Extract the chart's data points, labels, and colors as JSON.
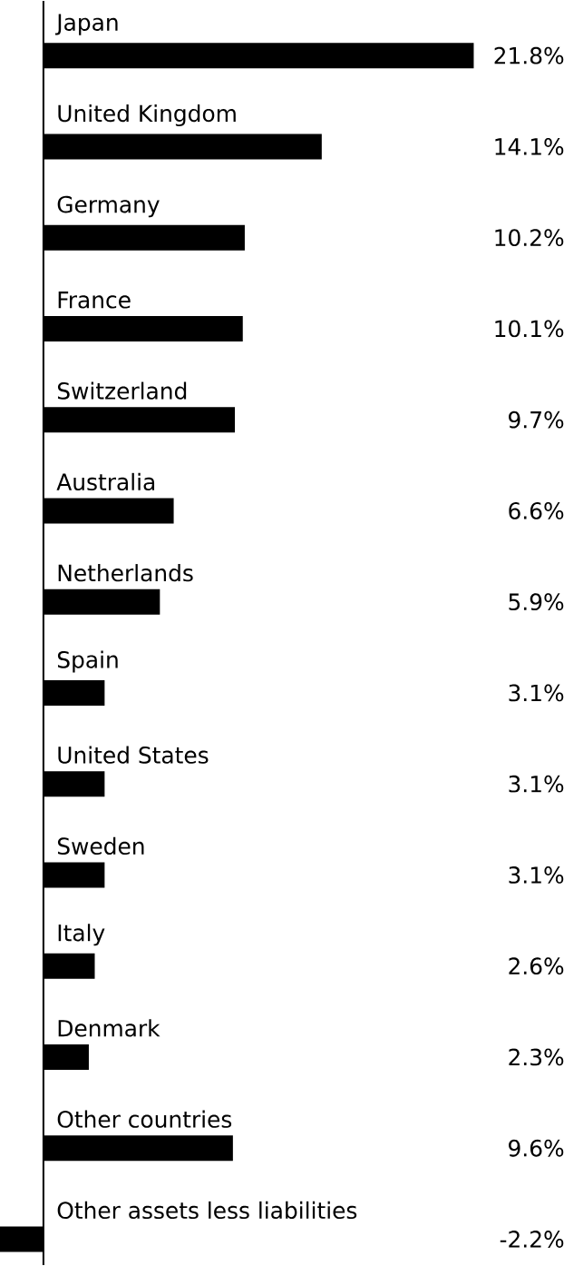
{
  "chart_data": {
    "type": "bar",
    "orientation": "horizontal",
    "color": "#000000",
    "categories": [
      "Japan",
      "United Kingdom",
      "Germany",
      "France",
      "Switzerland",
      "Australia",
      "Netherlands",
      "Spain",
      "United States",
      "Sweden",
      "Italy",
      "Denmark",
      "Other countries",
      "Other assets less liabilities"
    ],
    "values": [
      21.8,
      14.1,
      10.2,
      10.1,
      9.7,
      6.6,
      5.9,
      3.1,
      3.1,
      3.1,
      2.6,
      2.3,
      9.6,
      -2.2
    ],
    "value_labels": [
      "21.8%",
      "14.1%",
      "10.2%",
      "10.1%",
      "9.7%",
      "6.6%",
      "5.9%",
      "3.1%",
      "3.1%",
      "3.1%",
      "2.6%",
      "2.3%",
      "9.6%",
      "-2.2%"
    ]
  }
}
